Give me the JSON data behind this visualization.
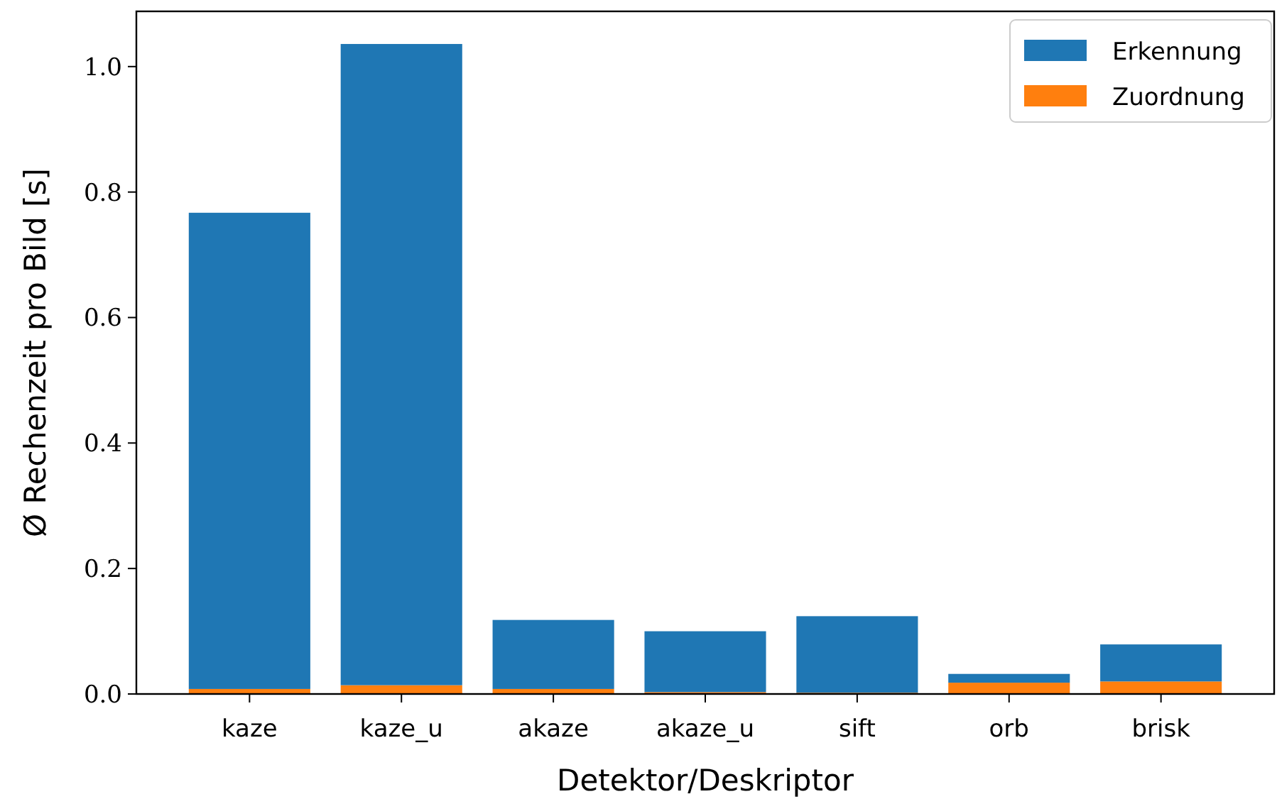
{
  "chart_data": {
    "type": "bar",
    "stacked": true,
    "xlabel": "Detektor/Deskriptor",
    "ylabel": "Ø Rechenzeit pro Bild [s]",
    "categories": [
      "kaze",
      "kaze_u",
      "akaze",
      "akaze_u",
      "sift",
      "orb",
      "brisk"
    ],
    "series": [
      {
        "name": "Zuordnung",
        "color": "#ff7f0e",
        "values": [
          0.008,
          0.014,
          0.008,
          0.003,
          0.002,
          0.018,
          0.02
        ]
      },
      {
        "name": "Erkennung",
        "color": "#1f77b4",
        "values": [
          0.759,
          1.022,
          0.11,
          0.097,
          0.122,
          0.014,
          0.059
        ]
      }
    ],
    "ylim": [
      0,
      1.088
    ],
    "yticks": [
      {
        "value": 0,
        "label": "0.0"
      },
      {
        "value": 0.2,
        "label": "0.2"
      },
      {
        "value": 0.4,
        "label": "0.4"
      },
      {
        "value": 0.6,
        "label": "0.6"
      },
      {
        "value": 0.8,
        "label": "0.8"
      },
      {
        "value": 1,
        "label": "1.0"
      }
    ],
    "grid": false,
    "legend": "top right"
  }
}
